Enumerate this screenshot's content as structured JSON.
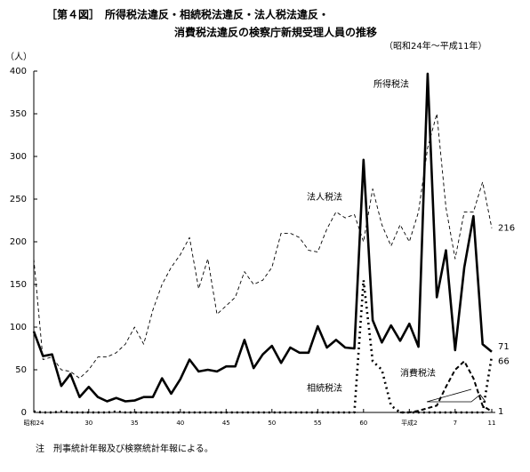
{
  "chart_data": {
    "type": "line",
    "title": "［第４図］　所得税法違反・相続税法違反・法人税法違反・",
    "title_line2": "消費税法違反の検察庁新規受理人員の推移",
    "subtitle": "（昭和24年～平成11年）",
    "y_unit": "（人）",
    "note": "注　刑事統計年報及び検察統計年報による。",
    "categories": [
      "昭和24",
      null,
      null,
      null,
      null,
      null,
      "30",
      null,
      null,
      null,
      null,
      "35",
      null,
      null,
      null,
      null,
      "40",
      null,
      null,
      null,
      null,
      "45",
      null,
      null,
      null,
      null,
      "50",
      null,
      null,
      null,
      null,
      "55",
      null,
      null,
      null,
      null,
      "60",
      null,
      null,
      null,
      null,
      "平成2",
      null,
      null,
      null,
      null,
      "7",
      null,
      null,
      null,
      "11"
    ],
    "ylim": [
      0,
      400
    ],
    "yticks": [
      0,
      50,
      100,
      150,
      200,
      250,
      300,
      350,
      400
    ],
    "grid": false,
    "series": [
      {
        "name": "所得税法",
        "color": "#000000",
        "line_style": "thick-solid",
        "values": [
          95,
          66,
          68,
          31,
          45,
          18,
          30,
          18,
          13,
          17,
          13,
          14,
          18,
          18,
          40,
          22,
          39,
          62,
          48,
          50,
          48,
          54,
          54,
          85,
          52,
          68,
          78,
          58,
          76,
          70,
          70,
          101,
          76,
          85,
          76,
          75,
          296,
          108,
          82,
          102,
          84,
          104,
          77,
          397,
          135,
          190,
          73,
          170,
          230,
          80,
          71
        ]
      },
      {
        "name": "法人税法",
        "color": "#000000",
        "line_style": "thin-dashed",
        "values": [
          180,
          62,
          65,
          50,
          48,
          40,
          50,
          65,
          65,
          70,
          80,
          100,
          80,
          120,
          150,
          170,
          185,
          205,
          145,
          180,
          115,
          125,
          135,
          165,
          150,
          155,
          170,
          210,
          210,
          205,
          190,
          188,
          215,
          235,
          228,
          232,
          200,
          262,
          220,
          195,
          220,
          200,
          235,
          310,
          350,
          240,
          180,
          235,
          235,
          270,
          216
        ]
      },
      {
        "name": "相続税法",
        "color": "#000000",
        "line_style": "thick-dotted",
        "values": [
          1,
          0,
          0,
          1,
          0,
          0,
          0,
          0,
          0,
          1,
          0,
          0,
          0,
          0,
          0,
          0,
          0,
          0,
          0,
          0,
          0,
          0,
          0,
          0,
          0,
          0,
          0,
          0,
          0,
          0,
          0,
          0,
          0,
          0,
          0,
          0,
          155,
          60,
          50,
          8,
          0,
          0,
          0,
          0,
          0,
          0,
          0,
          0,
          0,
          0,
          66
        ]
      },
      {
        "name": "消費税法",
        "color": "#000000",
        "line_style": "thick-dashed",
        "values": [
          null,
          null,
          null,
          null,
          null,
          null,
          null,
          null,
          null,
          null,
          null,
          null,
          null,
          null,
          null,
          null,
          null,
          null,
          null,
          null,
          null,
          null,
          null,
          null,
          null,
          null,
          null,
          null,
          null,
          null,
          null,
          null,
          null,
          null,
          null,
          null,
          null,
          null,
          null,
          null,
          0,
          0,
          2,
          5,
          8,
          30,
          50,
          60,
          40,
          8,
          1
        ]
      }
    ]
  }
}
